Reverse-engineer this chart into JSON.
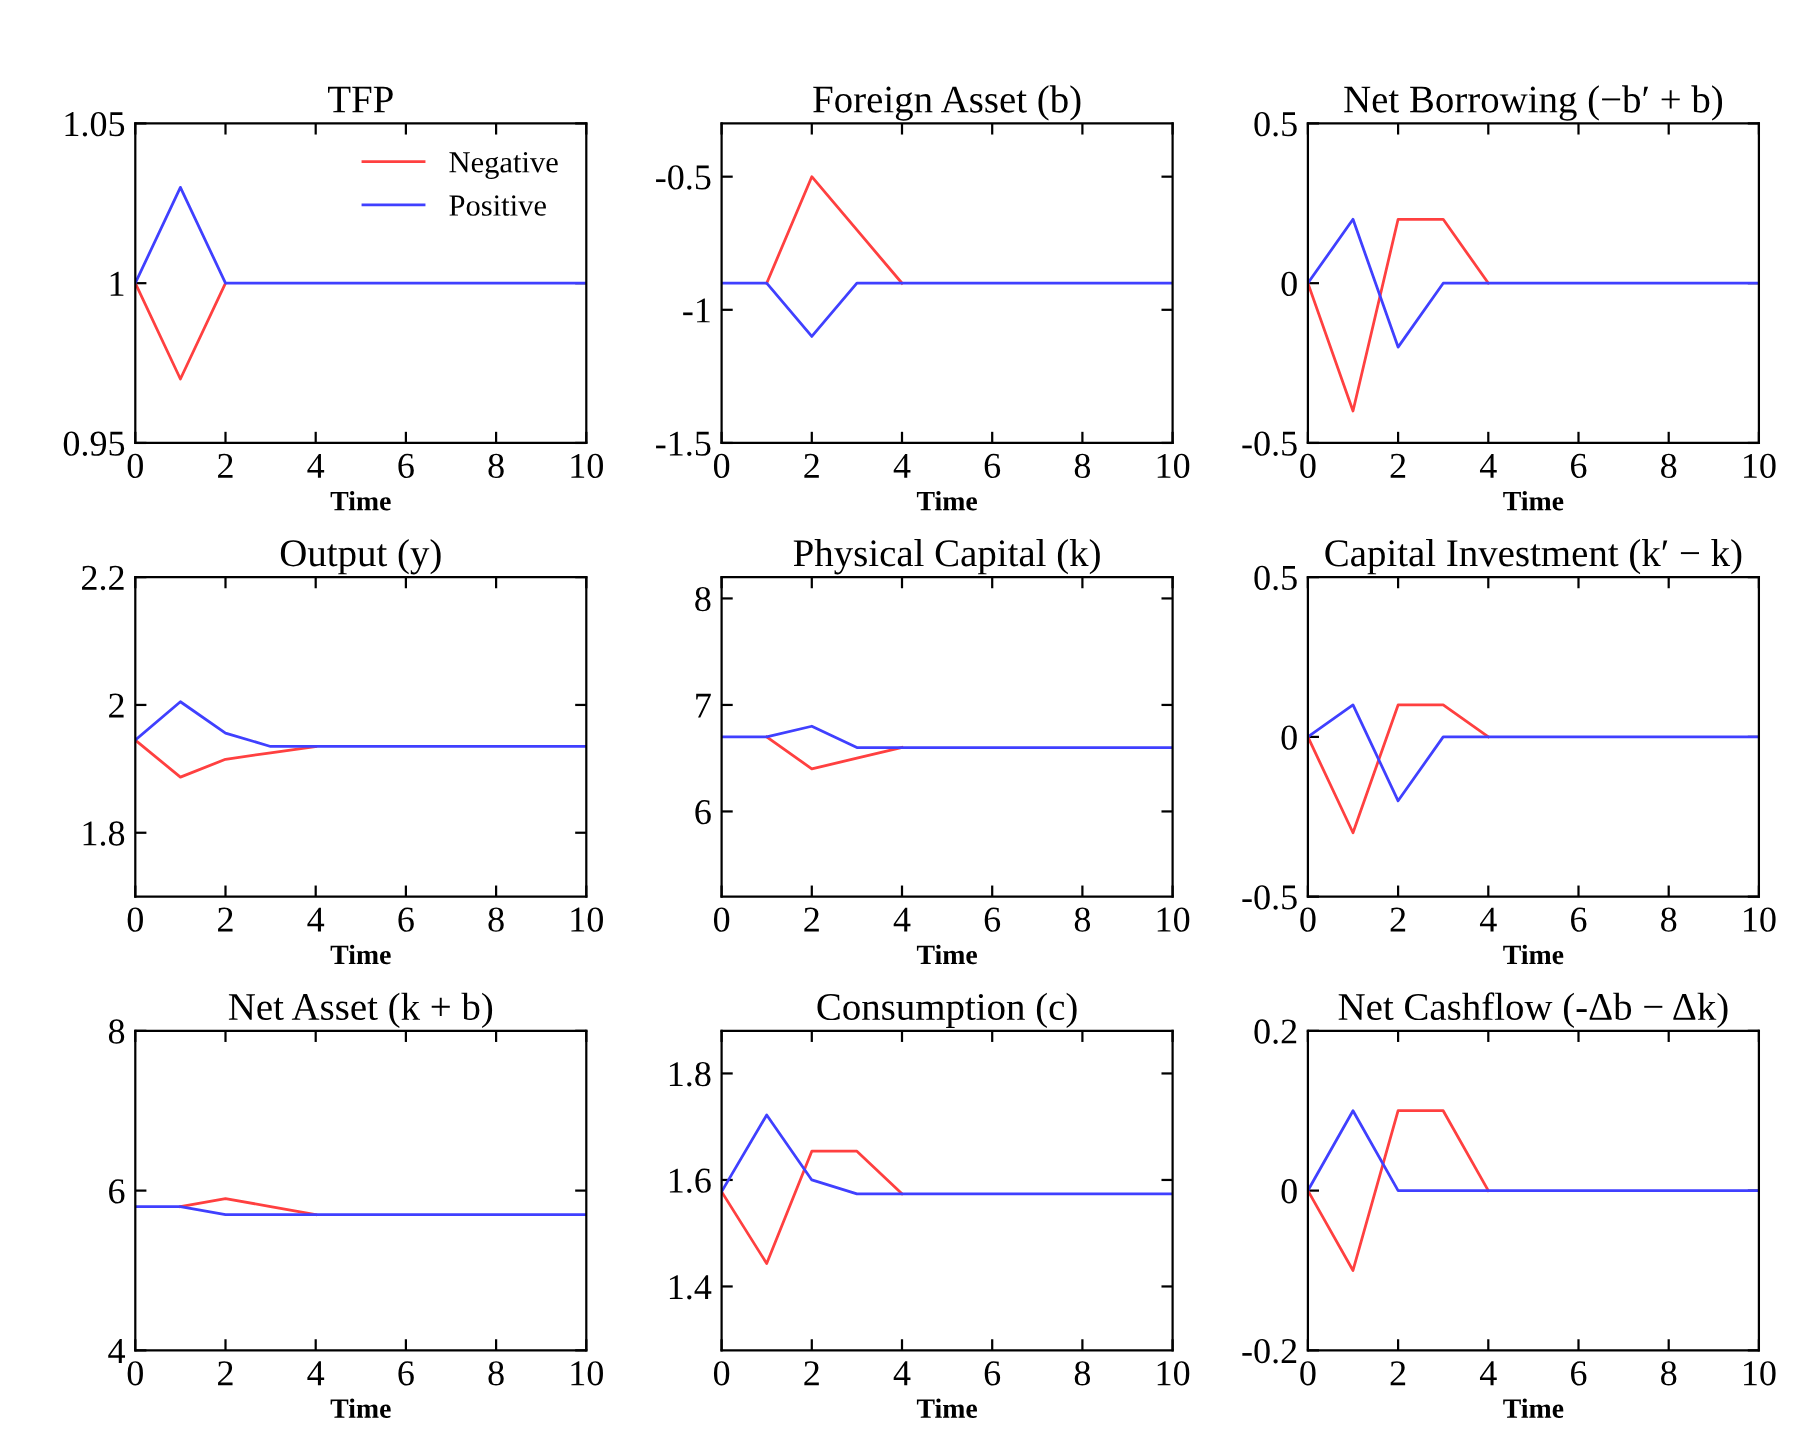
{
  "chart_data": [
    {
      "type": "line",
      "title": "TFP",
      "xlabel": "Time",
      "x": [
        0,
        1,
        2,
        3,
        4,
        5,
        6,
        7,
        8,
        9,
        10
      ],
      "xlim": [
        0,
        10
      ],
      "xticks": [
        0,
        2,
        4,
        6,
        8,
        10
      ],
      "ylim": [
        0.95,
        1.05
      ],
      "yticks": [
        0.95,
        1,
        1.05
      ],
      "grid": false,
      "legend": "top right",
      "series": [
        {
          "name": "Negative",
          "color": "#ff4040",
          "values": [
            1,
            0.97,
            1,
            null,
            null,
            null,
            null,
            null,
            null,
            null,
            null
          ]
        },
        {
          "name": "Positive",
          "color": "#4040ff",
          "values": [
            1,
            1.03,
            1,
            1,
            1,
            1,
            1,
            1,
            1,
            1,
            1
          ]
        }
      ]
    },
    {
      "type": "line",
      "title": "Foreign Asset (b)",
      "xlabel": "Time",
      "x": [
        0,
        1,
        2,
        3,
        4,
        5,
        6,
        7,
        8,
        9,
        10
      ],
      "xlim": [
        0,
        10
      ],
      "xticks": [
        0,
        2,
        4,
        6,
        8,
        10
      ],
      "ylim": [
        -1.5,
        -0.3
      ],
      "yticks": [
        -1.5,
        -1,
        -0.5
      ],
      "grid": false,
      "series": [
        {
          "color": "#ff4040",
          "values": [
            null,
            -0.9,
            -0.5,
            -0.7,
            -0.9,
            null,
            null,
            null,
            null,
            null,
            null
          ]
        },
        {
          "color": "#4040ff",
          "values": [
            -0.9,
            -0.9,
            -1.1,
            -0.9,
            -0.9,
            -0.9,
            -0.9,
            -0.9,
            -0.9,
            -0.9,
            -0.9
          ]
        }
      ]
    },
    {
      "type": "line",
      "title": "Net Borrowing (−b′ + b)",
      "xlabel": "Time",
      "x": [
        0,
        1,
        2,
        3,
        4,
        5,
        6,
        7,
        8,
        9,
        10
      ],
      "xlim": [
        0,
        10
      ],
      "xticks": [
        0,
        2,
        4,
        6,
        8,
        10
      ],
      "ylim": [
        -0.5,
        0.5
      ],
      "yticks": [
        -0.5,
        0,
        0.5
      ],
      "grid": false,
      "series": [
        {
          "color": "#ff4040",
          "values": [
            0,
            -0.4,
            0.2,
            0.2,
            0,
            null,
            null,
            null,
            null,
            null,
            null
          ]
        },
        {
          "color": "#4040ff",
          "values": [
            0,
            0.2,
            -0.2,
            0,
            0,
            0,
            0,
            0,
            0,
            0,
            0
          ]
        }
      ]
    },
    {
      "type": "line",
      "title": "Output (y)",
      "xlabel": "Time",
      "x": [
        0,
        1,
        2,
        3,
        4,
        5,
        6,
        7,
        8,
        9,
        10
      ],
      "xlim": [
        0,
        10
      ],
      "xticks": [
        0,
        2,
        4,
        6,
        8,
        10
      ],
      "ylim": [
        1.7,
        2.2
      ],
      "yticks": [
        1.8,
        2,
        2.2
      ],
      "grid": false,
      "series": [
        {
          "color": "#ff4040",
          "values": [
            1.945,
            1.887,
            1.915,
            1.925,
            1.935,
            null,
            null,
            null,
            null,
            null,
            null
          ]
        },
        {
          "color": "#4040ff",
          "values": [
            1.945,
            2.005,
            1.956,
            1.935,
            1.935,
            1.935,
            1.935,
            1.935,
            1.935,
            1.935,
            1.935
          ]
        }
      ]
    },
    {
      "type": "line",
      "title": "Physical Capital (k)",
      "xlabel": "Time",
      "x": [
        0,
        1,
        2,
        3,
        4,
        5,
        6,
        7,
        8,
        9,
        10
      ],
      "xlim": [
        0,
        10
      ],
      "xticks": [
        0,
        2,
        4,
        6,
        8,
        10
      ],
      "ylim": [
        5.2,
        8.2
      ],
      "yticks": [
        6,
        7,
        8
      ],
      "grid": false,
      "series": [
        {
          "color": "#ff4040",
          "values": [
            null,
            6.7,
            6.4,
            6.5,
            6.6,
            null,
            null,
            null,
            null,
            null,
            null
          ]
        },
        {
          "color": "#4040ff",
          "values": [
            6.7,
            6.7,
            6.8,
            6.6,
            6.6,
            6.6,
            6.6,
            6.6,
            6.6,
            6.6,
            6.6
          ]
        }
      ]
    },
    {
      "type": "line",
      "title": "Capital Investment (k′ − k)",
      "xlabel": "Time",
      "x": [
        0,
        1,
        2,
        3,
        4,
        5,
        6,
        7,
        8,
        9,
        10
      ],
      "xlim": [
        0,
        10
      ],
      "xticks": [
        0,
        2,
        4,
        6,
        8,
        10
      ],
      "ylim": [
        -0.5,
        0.5
      ],
      "yticks": [
        -0.5,
        0,
        0.5
      ],
      "grid": false,
      "series": [
        {
          "color": "#ff4040",
          "values": [
            0,
            -0.3,
            0.1,
            0.1,
            0,
            null,
            null,
            null,
            null,
            null,
            null
          ]
        },
        {
          "color": "#4040ff",
          "values": [
            0,
            0.1,
            -0.2,
            0,
            0,
            0,
            0,
            0,
            0,
            0,
            0
          ]
        }
      ]
    },
    {
      "type": "line",
      "title": "Net Asset (k + b)",
      "xlabel": "Time",
      "x": [
        0,
        1,
        2,
        3,
        4,
        5,
        6,
        7,
        8,
        9,
        10
      ],
      "xlim": [
        0,
        10
      ],
      "xticks": [
        0,
        2,
        4,
        6,
        8,
        10
      ],
      "ylim": [
        4,
        8
      ],
      "yticks": [
        4,
        6,
        8
      ],
      "grid": false,
      "series": [
        {
          "color": "#ff4040",
          "values": [
            null,
            5.8,
            5.9,
            5.8,
            5.7,
            null,
            null,
            null,
            null,
            null,
            null
          ]
        },
        {
          "color": "#4040ff",
          "values": [
            5.8,
            5.8,
            5.7,
            5.7,
            5.7,
            5.7,
            5.7,
            5.7,
            5.7,
            5.7,
            5.7
          ]
        }
      ]
    },
    {
      "type": "line",
      "title": "Consumption (c)",
      "xlabel": "Time",
      "x": [
        0,
        1,
        2,
        3,
        4,
        5,
        6,
        7,
        8,
        9,
        10
      ],
      "xlim": [
        0,
        10
      ],
      "xticks": [
        0,
        2,
        4,
        6,
        8,
        10
      ],
      "ylim": [
        1.28,
        1.88
      ],
      "yticks": [
        1.4,
        1.6,
        1.8
      ],
      "grid": false,
      "series": [
        {
          "color": "#ff4040",
          "values": [
            1.578,
            1.443,
            1.654,
            1.654,
            1.574,
            null,
            null,
            null,
            null,
            null,
            null
          ]
        },
        {
          "color": "#4040ff",
          "values": [
            1.578,
            1.722,
            1.6,
            1.574,
            1.574,
            1.574,
            1.574,
            1.574,
            1.574,
            1.574,
            1.574
          ]
        }
      ]
    },
    {
      "type": "line",
      "title": "Net Cashflow (-Δb − Δk)",
      "xlabel": "Time",
      "x": [
        0,
        1,
        2,
        3,
        4,
        5,
        6,
        7,
        8,
        9,
        10
      ],
      "xlim": [
        0,
        10
      ],
      "xticks": [
        0,
        2,
        4,
        6,
        8,
        10
      ],
      "ylim": [
        -0.2,
        0.2
      ],
      "yticks": [
        -0.2,
        0,
        0.2
      ],
      "grid": false,
      "series": [
        {
          "color": "#ff4040",
          "values": [
            0,
            -0.1,
            0.1,
            0.1,
            0,
            null,
            null,
            null,
            null,
            null,
            null
          ]
        },
        {
          "color": "#4040ff",
          "values": [
            0,
            0.1,
            0,
            0,
            0,
            0,
            0,
            0,
            0,
            0,
            0
          ]
        }
      ]
    }
  ]
}
